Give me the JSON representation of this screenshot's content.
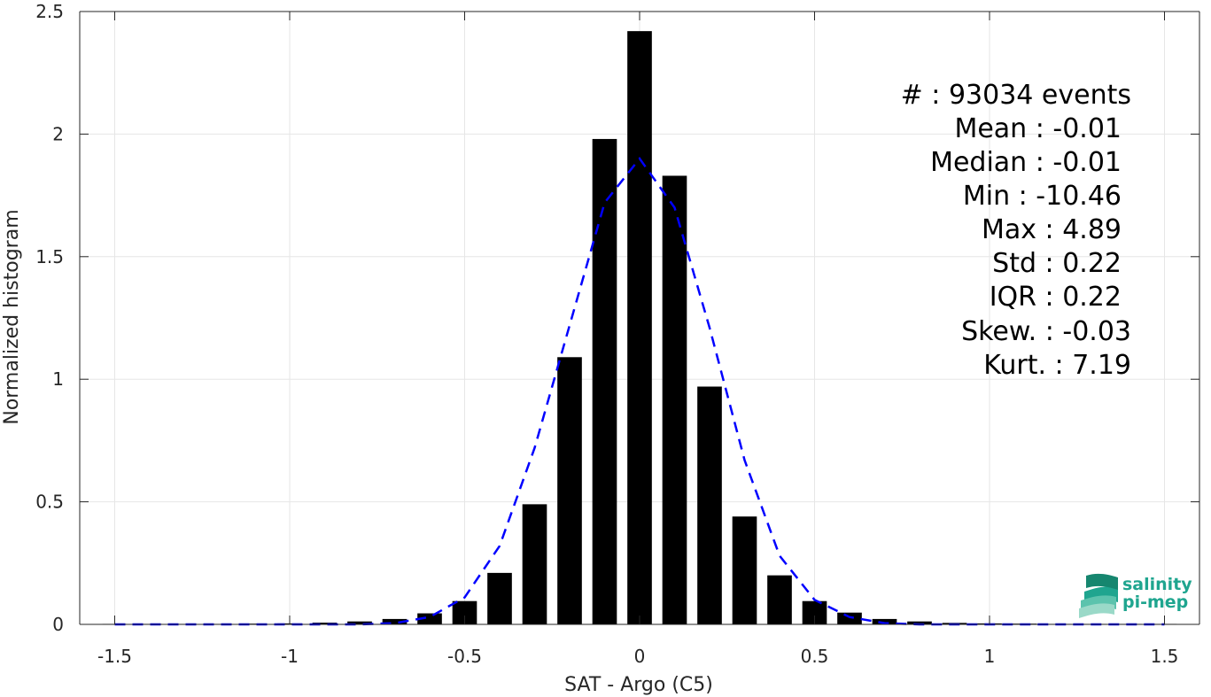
{
  "chart_data": {
    "type": "bar",
    "xlabel": "SAT - Argo (C5)",
    "ylabel": "Normalized histogram",
    "xlim": [
      -1.6,
      1.6
    ],
    "ylim": [
      0,
      2.5
    ],
    "xticks": [
      -1.5,
      -1,
      -0.5,
      0,
      0.5,
      1,
      1.5
    ],
    "xtick_labels": [
      "-1.5",
      "-1",
      "-0.5",
      "0",
      "0.5",
      "1",
      "1.5"
    ],
    "yticks": [
      0,
      0.5,
      1,
      1.5,
      2,
      2.5
    ],
    "ytick_labels": [
      "0",
      "0.5",
      "1",
      "1.5",
      "2",
      "2.5"
    ],
    "grid": true,
    "bar_width": 0.07,
    "series": [
      {
        "type": "bar",
        "color": "#000000",
        "x": [
          -1.5,
          -1.4,
          -1.3,
          -1.2,
          -1.1,
          -1.0,
          -0.9,
          -0.8,
          -0.7,
          -0.6,
          -0.5,
          -0.4,
          -0.3,
          -0.2,
          -0.1,
          0.0,
          0.1,
          0.2,
          0.3,
          0.4,
          0.5,
          0.6,
          0.7,
          0.8,
          0.9,
          1.0,
          1.1,
          1.2,
          1.3,
          1.4,
          1.5
        ],
        "values": [
          0.002,
          0.002,
          0.002,
          0.002,
          0.003,
          0.004,
          0.007,
          0.012,
          0.022,
          0.045,
          0.095,
          0.21,
          0.49,
          1.09,
          1.98,
          2.42,
          1.83,
          0.97,
          0.44,
          0.2,
          0.095,
          0.048,
          0.022,
          0.012,
          0.006,
          0.004,
          0.003,
          0.002,
          0.002,
          0.002,
          0.002
        ]
      },
      {
        "type": "line",
        "style": "dashed",
        "color": "#0000ff",
        "x": [
          -1.5,
          -1.4,
          -1.3,
          -1.2,
          -1.1,
          -1.0,
          -0.9,
          -0.8,
          -0.7,
          -0.6,
          -0.5,
          -0.4,
          -0.3,
          -0.2,
          -0.1,
          0.0,
          0.1,
          0.2,
          0.3,
          0.4,
          0.5,
          0.6,
          0.7,
          0.8,
          0.9,
          1.0,
          1.1,
          1.2,
          1.3,
          1.4,
          1.5
        ],
        "values": [
          0.0,
          0.0,
          0.0,
          0.0,
          0.0,
          0.0,
          0.0,
          0.0,
          0.005,
          0.03,
          0.11,
          0.32,
          0.72,
          1.22,
          1.72,
          1.9,
          1.7,
          1.21,
          0.67,
          0.28,
          0.1,
          0.03,
          0.005,
          0.0,
          0.0,
          0.0,
          0.0,
          0.0,
          0.0,
          0.0,
          0.0
        ]
      }
    ],
    "annotations": {
      "lines": [
        "#  : 93034 events",
        "Mean : -0.01",
        "Median : -0.01",
        "Min : -10.46",
        "Max : 4.89",
        "Std : 0.22",
        "IQR : 0.22",
        "Skew. : -0.03",
        "Kurt. : 7.19"
      ],
      "placement": "top-right"
    }
  },
  "logo": {
    "line1": "salinity",
    "line2": "pi-mep",
    "color": "#1fa58f"
  }
}
